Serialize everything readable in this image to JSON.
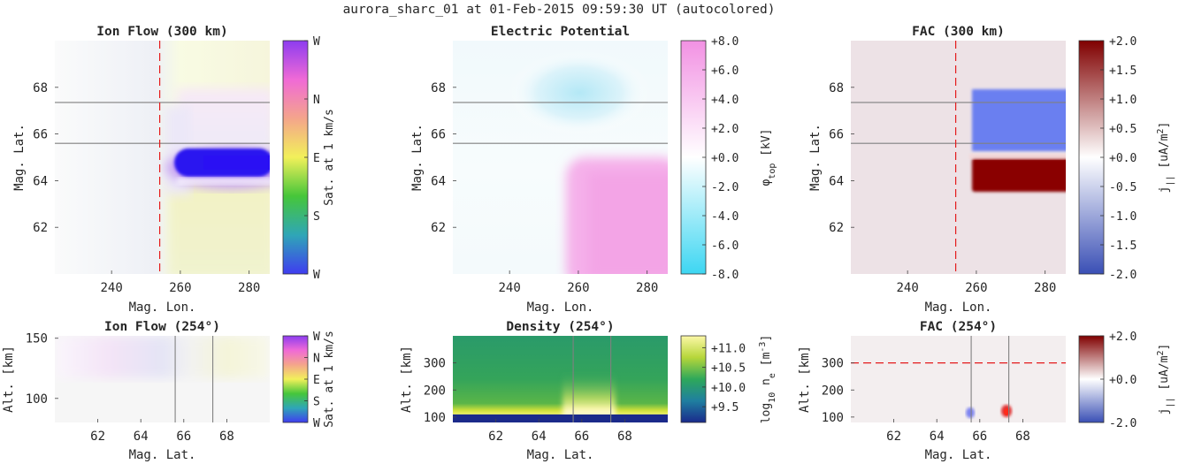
{
  "suptitle": "aurora_sharc_01 at 01-Feb-2015 09:59:30 UT (autocolored)",
  "colors": {
    "arc_line": "#808080",
    "cut_line": "#e41a1c",
    "fac_background": "#ede2e6",
    "ion_jet": "#2a16f0",
    "upward_fac": "#6b7ff0",
    "downward_fac": "#8f0000"
  },
  "chart_data": [
    {
      "id": "ionflow_map",
      "type": "heatmap",
      "title": "Ion Flow (300 km)",
      "xlabel": "Mag. Lon.",
      "ylabel": "Mag. Lat.",
      "xlim": [
        223.5,
        286
      ],
      "ylim": [
        60,
        70
      ],
      "xticks": [
        "240",
        "260",
        "280"
      ],
      "yticks": [
        "62",
        "64",
        "66",
        "68"
      ],
      "xtick_values": [
        240,
        260,
        280
      ],
      "ytick_values": [
        62,
        64,
        66,
        68
      ],
      "colorbar": {
        "ticks": [
          "W",
          "N",
          "E",
          "S",
          "W"
        ],
        "label": "Sat. at 1 km/s",
        "colors": [
          "#3f3cf0",
          "#2fa6b7",
          "#46c63a",
          "#f2f05a",
          "#f4a58b",
          "#f06ad6",
          "#8d3cf0"
        ]
      },
      "arc_lats": [
        67.35,
        65.6
      ],
      "cut_lon": 254
    },
    {
      "id": "potential_map",
      "type": "heatmap",
      "title": "Electric Potential",
      "xlabel": "Mag. Lon.",
      "ylabel": "Mag. Lat.",
      "xlim": [
        223.5,
        286
      ],
      "ylim": [
        60,
        70
      ],
      "xticks": [
        "240",
        "260",
        "280"
      ],
      "yticks": [
        "62",
        "64",
        "66",
        "68"
      ],
      "xtick_values": [
        240,
        260,
        280
      ],
      "ytick_values": [
        62,
        64,
        66,
        68
      ],
      "colorbar": {
        "ticks": [
          "+8.0",
          "+6.0",
          "+4.0",
          "+2.0",
          "+0.0",
          "-2.0",
          "-4.0",
          "-6.0",
          "-8.0"
        ],
        "label_parts": [
          "φ",
          "top",
          " [kV]"
        ],
        "range": [
          -8,
          8
        ],
        "colors": [
          "#3dd6f2",
          "#ffffff",
          "#f291e3"
        ]
      },
      "arc_lats": [
        67.35,
        65.6
      ]
    },
    {
      "id": "fac_map",
      "type": "heatmap",
      "title": "FAC (300 km)",
      "xlabel": "Mag. Lon.",
      "ylabel": "Mag. Lat.",
      "xlim": [
        223.5,
        286
      ],
      "ylim": [
        60,
        70
      ],
      "xticks": [
        "240",
        "260",
        "280"
      ],
      "yticks": [
        "62",
        "64",
        "66",
        "68"
      ],
      "xtick_values": [
        240,
        260,
        280
      ],
      "ytick_values": [
        62,
        64,
        66,
        68
      ],
      "colorbar": {
        "ticks": [
          "+2.0",
          "+1.5",
          "+1.0",
          "+0.5",
          "+0.0",
          "-0.5",
          "-1.0",
          "-1.5",
          "-2.0"
        ],
        "label_parts": [
          "j",
          "||",
          " [uA/m",
          "2",
          "]"
        ],
        "range": [
          -2,
          2
        ],
        "colors": [
          "#3a4fb5",
          "#ffffff",
          "#800000"
        ]
      },
      "arc_lats": [
        67.35,
        65.6
      ],
      "cut_lon": 254
    },
    {
      "id": "ionflow_cut",
      "type": "heatmap",
      "title": "Ion Flow (254°)",
      "xlabel": "Mag. Lat.",
      "ylabel": "Alt. [km]",
      "xlim": [
        60,
        70
      ],
      "ylim": [
        80,
        152
      ],
      "xticks": [
        "62",
        "64",
        "66",
        "68"
      ],
      "yticks": [
        "100",
        "150"
      ],
      "xtick_values": [
        62,
        64,
        66,
        68
      ],
      "ytick_values": [
        100,
        150
      ],
      "colorbar": {
        "ticks": [
          "W",
          "N",
          "E",
          "S",
          "W"
        ],
        "label": "Sat. at 1 km/s",
        "colors": [
          "#3f3cf0",
          "#2fa6b7",
          "#46c63a",
          "#f2f05a",
          "#f4a58b",
          "#f06ad6",
          "#8d3cf0"
        ]
      },
      "arc_lats": [
        65.6,
        67.35
      ]
    },
    {
      "id": "density_cut",
      "type": "heatmap",
      "title": "Density (254°)",
      "xlabel": "Mag. Lat.",
      "ylabel": "Alt. [km]",
      "xlim": [
        60,
        70
      ],
      "ylim": [
        80,
        400
      ],
      "xticks": [
        "62",
        "64",
        "66",
        "68"
      ],
      "yticks": [
        "100",
        "200",
        "300"
      ],
      "xtick_values": [
        62,
        64,
        66,
        68
      ],
      "ytick_values": [
        100,
        200,
        300
      ],
      "colorbar": {
        "ticks": [
          "+11.0",
          "+10.5",
          "+10.0",
          "+9.5"
        ],
        "label_parts": [
          "log",
          "10",
          " n",
          "e",
          " [m",
          "-3",
          "]"
        ],
        "range": [
          9.1,
          11.3
        ],
        "colors": [
          "#1a2a8c",
          "#1f7fa0",
          "#2ea85a",
          "#b6d63a",
          "#fcf8a8"
        ]
      },
      "arc_lats": [
        65.6,
        67.35
      ]
    },
    {
      "id": "fac_cut",
      "type": "heatmap",
      "title": "FAC (254°)",
      "xlabel": "Mag. Lat.",
      "ylabel": "Alt. [km]",
      "xlim": [
        60,
        70
      ],
      "ylim": [
        80,
        400
      ],
      "xticks": [
        "62",
        "64",
        "66",
        "68"
      ],
      "yticks": [
        "100",
        "200",
        "300"
      ],
      "xtick_values": [
        62,
        64,
        66,
        68
      ],
      "ytick_values": [
        100,
        200,
        300
      ],
      "colorbar": {
        "ticks": [
          "+2.0",
          "+0.0",
          "-2.0"
        ],
        "label_parts": [
          "j",
          "||",
          " [uA/m",
          "2",
          "]"
        ],
        "range": [
          -2,
          2
        ],
        "colors": [
          "#3a4fb5",
          "#ffffff",
          "#800000"
        ]
      },
      "arc_lats": [
        65.6,
        67.35
      ],
      "cut_alt": 300
    }
  ]
}
